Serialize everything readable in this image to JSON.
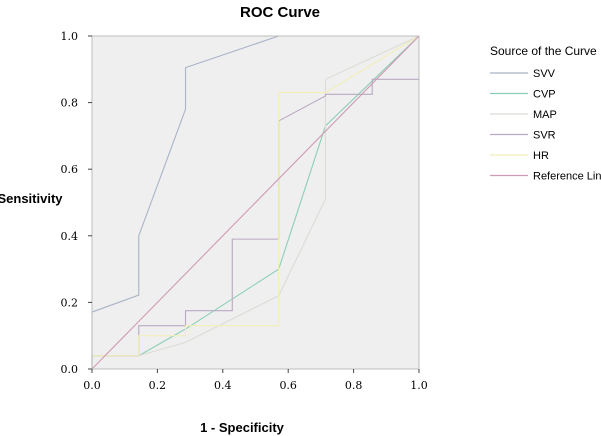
{
  "chart_data": {
    "type": "line",
    "title": "ROC Curve",
    "xlabel": "1 - Specificity",
    "ylabel": "Sensitivity",
    "xlim": [
      0.0,
      1.0
    ],
    "ylim": [
      0.0,
      1.0
    ],
    "xticks": [
      "0.0",
      "0.2",
      "0.4",
      "0.6",
      "0.8",
      "1.0"
    ],
    "yticks": [
      "0.0",
      "0.2",
      "0.4",
      "0.6",
      "0.8",
      "1.0"
    ],
    "legend_title": "Source of the Curve",
    "legend_position": "right",
    "grid": false,
    "series": [
      {
        "name": "SVV",
        "color": "#a9b4c6",
        "x": [
          0.0,
          0.0,
          0.143,
          0.143,
          0.286,
          0.286,
          0.571,
          1.0
        ],
        "y": [
          0.0,
          0.171,
          0.222,
          0.4,
          0.78,
          0.905,
          1.0,
          1.0
        ]
      },
      {
        "name": "CVP",
        "color": "#8ccfb4",
        "x": [
          0.0,
          0.0,
          0.143,
          0.286,
          0.571,
          0.714,
          1.0
        ],
        "y": [
          0.0,
          0.04,
          0.04,
          0.12,
          0.3,
          0.73,
          1.0
        ]
      },
      {
        "name": "MAP",
        "color": "#dcdcd6",
        "x": [
          0.0,
          0.0,
          0.143,
          0.286,
          0.571,
          0.714,
          0.714,
          1.0
        ],
        "y": [
          0.0,
          0.04,
          0.04,
          0.08,
          0.22,
          0.51,
          0.87,
          1.0
        ]
      },
      {
        "name": "SVR",
        "color": "#b9a9c2",
        "x": [
          0.0,
          0.0,
          0.143,
          0.143,
          0.286,
          0.286,
          0.429,
          0.429,
          0.571,
          0.571,
          0.714,
          0.714,
          0.857,
          0.857,
          1.0
        ],
        "y": [
          0.0,
          0.04,
          0.04,
          0.13,
          0.13,
          0.175,
          0.175,
          0.39,
          0.39,
          0.745,
          0.82,
          0.825,
          0.825,
          0.87,
          0.87
        ]
      },
      {
        "name": "HR",
        "color": "#f2eeb8",
        "x": [
          0.0,
          0.0,
          0.143,
          0.143,
          0.286,
          0.286,
          0.571,
          0.571,
          0.714,
          1.0
        ],
        "y": [
          0.0,
          0.04,
          0.04,
          0.1,
          0.1,
          0.13,
          0.13,
          0.83,
          0.83,
          1.0
        ]
      },
      {
        "name": "Reference Line",
        "color": "#cf9ab5",
        "x": [
          0.0,
          1.0
        ],
        "y": [
          0.0,
          1.0
        ]
      }
    ]
  }
}
